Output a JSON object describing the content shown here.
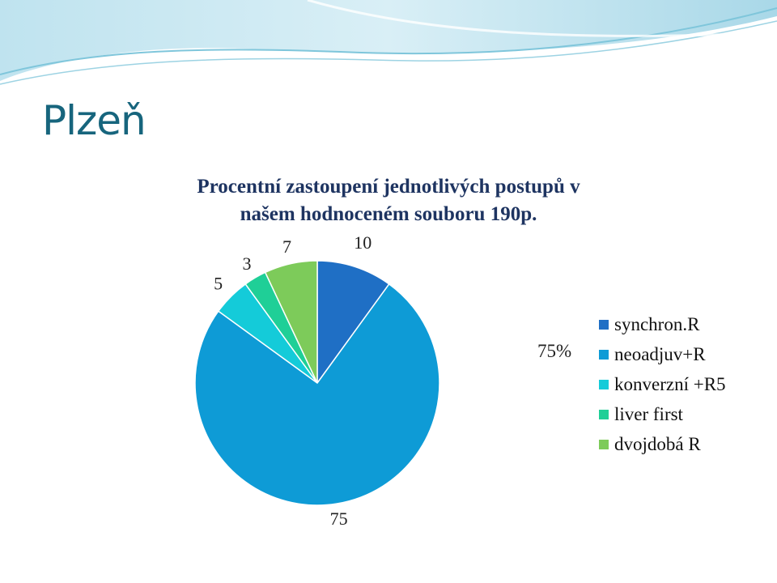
{
  "slide": {
    "title": "Plzeň"
  },
  "chart_title": {
    "line1": "Procentní zastoupení  jednotlivých postupů v",
    "line2": "našem hodnoceném souboru 190p."
  },
  "side_label": "75%",
  "chart_data": {
    "type": "pie",
    "title": "Procentní zastoupení  jednotlivých postupů v našem hodnoceném souboru 190p.",
    "categories": [
      "synchron.R",
      "neoadjuv+R",
      "konverzní +R5",
      "liver first",
      "dvojdobá R"
    ],
    "values": [
      10,
      75,
      5,
      3,
      7
    ],
    "data_labels": [
      "10",
      "75",
      "5",
      "3",
      "7"
    ],
    "colors": [
      "#1f6fc5",
      "#0e9bd6",
      "#14cbd9",
      "#1fcf97",
      "#7dcb5a"
    ],
    "legend_position": "right"
  },
  "theme": {
    "title_color": "#17657d",
    "heading_color": "#1e3461"
  }
}
